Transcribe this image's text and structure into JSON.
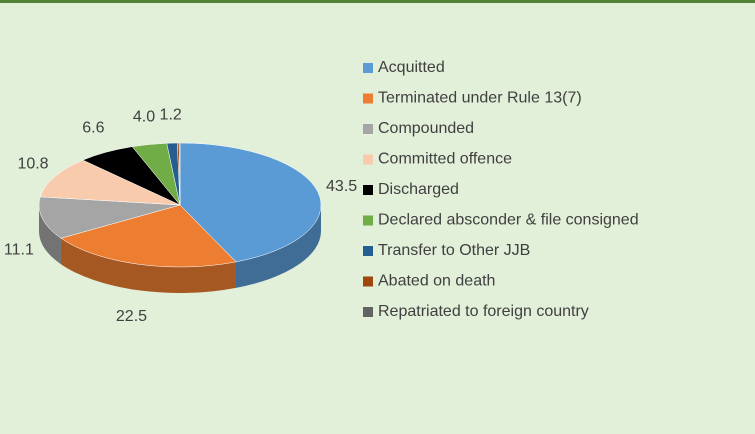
{
  "chart_data": {
    "type": "pie3d",
    "categories": [
      "Acquitted",
      "Terminated under Rule 13(7)",
      "Compounded",
      "Committed offence",
      "Discharged",
      "Declared absconder & file consigned",
      "Transfer to Other JJB",
      "Abated on death",
      "Repatriated to foreign country"
    ],
    "values": [
      43.5,
      22.5,
      11.1,
      10.8,
      6.6,
      4.0,
      1.2,
      0.2,
      0.1
    ],
    "value_labels": [
      "43.5",
      "22.5",
      "11.1",
      "10.8",
      "6.6",
      "4.0",
      "1.2",
      null,
      null
    ],
    "colors": [
      "#5b9bd5",
      "#ed7d31",
      "#a5a5a5",
      "#f8cbad",
      "#000000",
      "#70ad47",
      "#255e91",
      "#9e480e",
      "#636363"
    ],
    "legend": "right"
  }
}
